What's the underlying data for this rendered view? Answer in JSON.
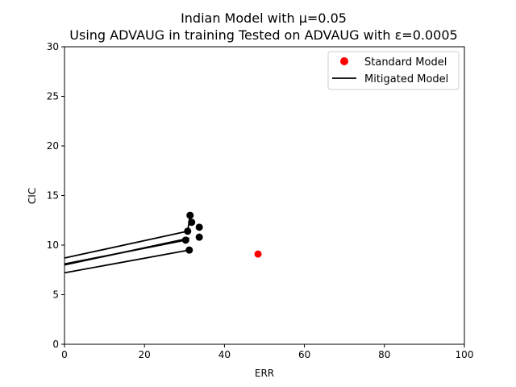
{
  "chart_data": {
    "type": "scatter",
    "title_line1": "Indian Model with μ=0.05",
    "title_line2": "Using ADVAUG in training Tested on ADVAUG with ε=0.0005",
    "xlabel": "ERR",
    "ylabel": "CIC",
    "xlim": [
      0,
      100
    ],
    "ylim": [
      0,
      30
    ],
    "xticks": [
      0,
      20,
      40,
      60,
      80,
      100
    ],
    "yticks": [
      0,
      5,
      10,
      15,
      20,
      25,
      30
    ],
    "grid": false,
    "legend_position": "top-right",
    "colors": {
      "standard": "#ff0000",
      "mitigated": "#000000"
    },
    "legend": [
      {
        "label": "Standard Model",
        "kind": "marker"
      },
      {
        "label": "Mitigated Model",
        "kind": "line"
      }
    ],
    "standard_points": [
      {
        "x": 48.4,
        "y": 9.1
      }
    ],
    "mitigated_points": [
      {
        "x": 31.4,
        "y": 13.0
      },
      {
        "x": 31.8,
        "y": 12.3
      },
      {
        "x": 33.7,
        "y": 11.8
      },
      {
        "x": 30.8,
        "y": 11.4
      },
      {
        "x": 33.7,
        "y": 10.8
      },
      {
        "x": 30.3,
        "y": 10.5
      },
      {
        "x": 31.2,
        "y": 9.5
      }
    ],
    "mitigated_lines": [
      [
        {
          "x": 0,
          "y": 8.7
        },
        {
          "x": 30.8,
          "y": 11.4
        },
        {
          "x": 31.4,
          "y": 13.0
        }
      ],
      [
        {
          "x": 0,
          "y": 8.1
        },
        {
          "x": 30.3,
          "y": 10.5
        }
      ],
      [
        {
          "x": 0,
          "y": 8.0
        },
        {
          "x": 31.2,
          "y": 10.7
        }
      ],
      [
        {
          "x": 0,
          "y": 7.2
        },
        {
          "x": 31.2,
          "y": 9.5
        }
      ]
    ]
  }
}
